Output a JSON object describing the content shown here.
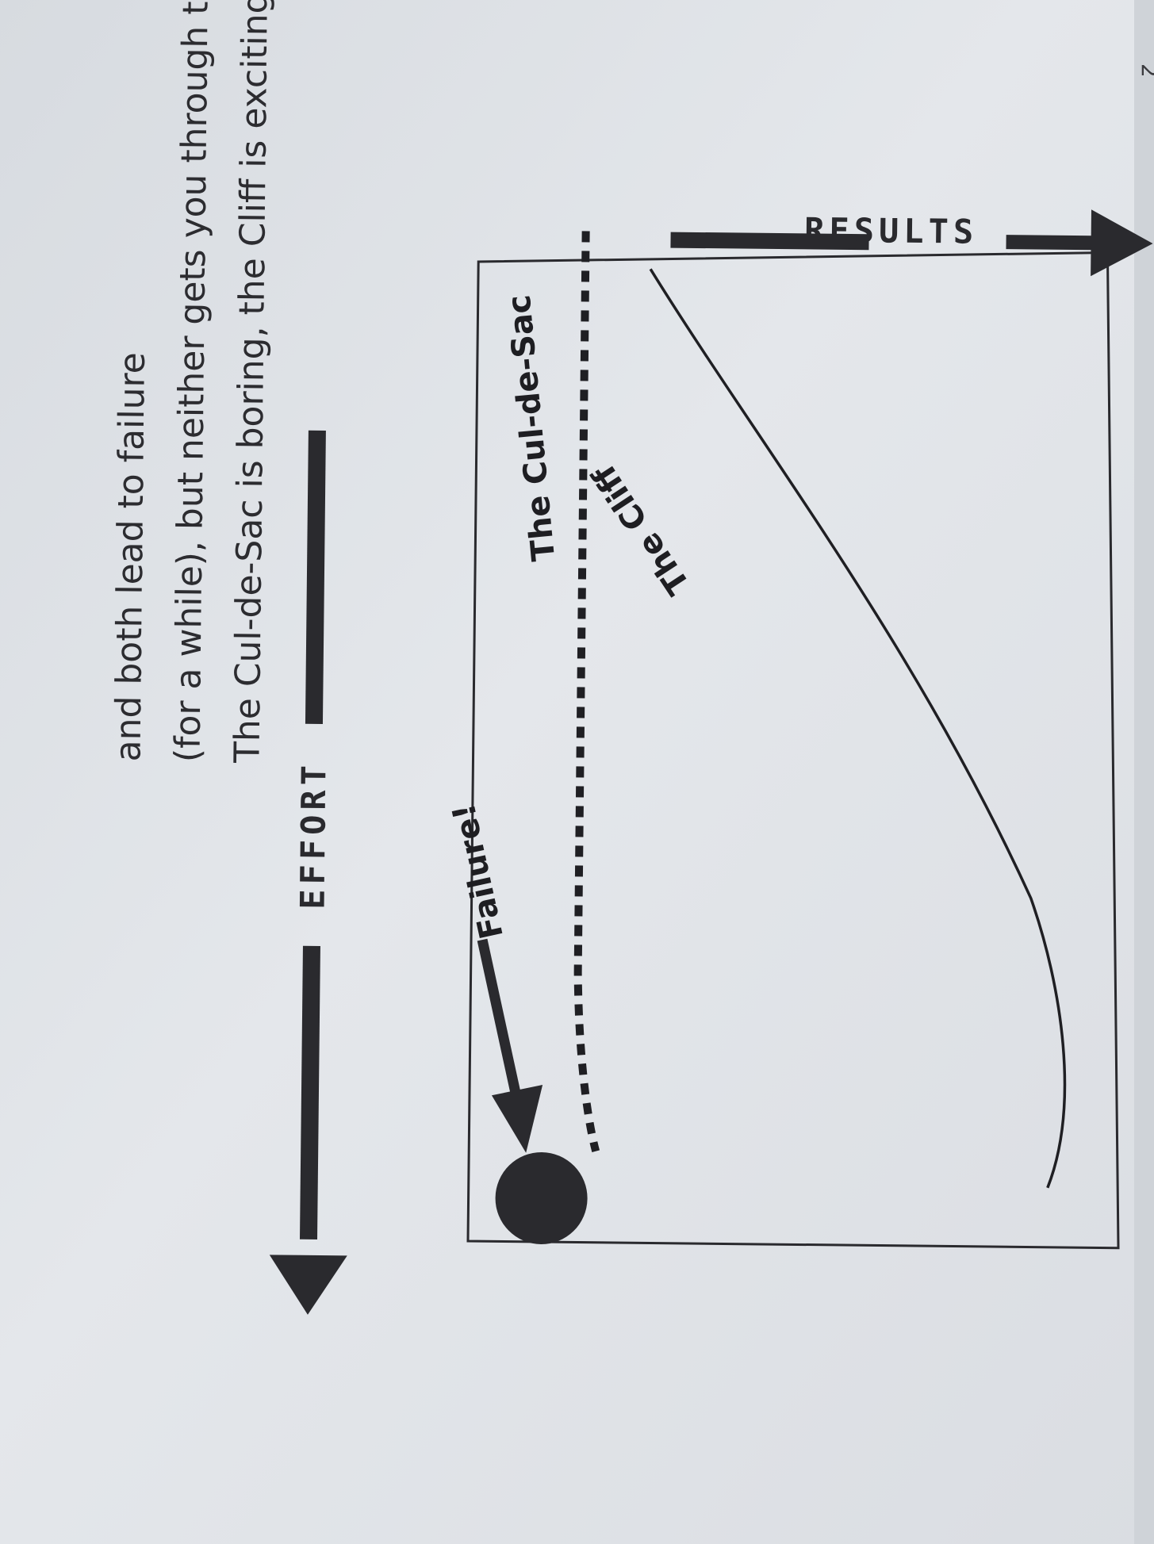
{
  "figure": {
    "x_axis_label": "EFFORT",
    "y_axis_label": "RESULTS",
    "curves": [
      {
        "name": "The Cliff",
        "style": "solid"
      },
      {
        "name": "The Cul-de-Sac",
        "style": "dashed"
      }
    ],
    "failure_label": "Failure!",
    "failure_marker": "failure-dot",
    "ink_color": "#2a2a2e",
    "paper_color": "#e1e4e8"
  },
  "caption": {
    "lines": [
      "The Cul-de-Sac is boring, the Cliff is exciting",
      "(for a while), but neither gets you through the Dip",
      "and both lead to failure"
    ]
  },
  "page": {
    "corner_mark": "2"
  }
}
